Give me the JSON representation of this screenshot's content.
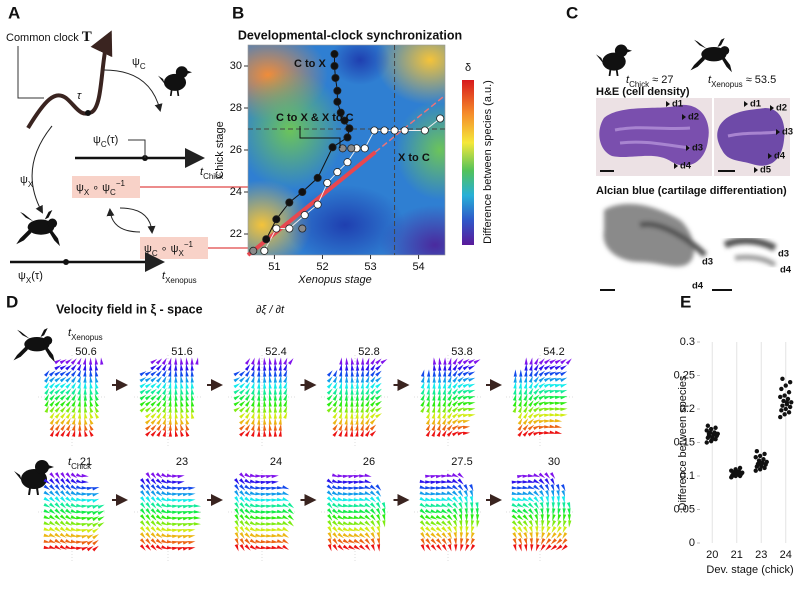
{
  "panels": {
    "A": {
      "label": "A",
      "common_clock": [
        "Common clock ",
        "T"
      ],
      "tau": "τ",
      "psi_c": [
        "ψ",
        "C"
      ],
      "psi_c_tau": [
        "ψ",
        "C",
        "(τ)"
      ],
      "t_chick": [
        "t",
        "Chick"
      ],
      "psi_x": [
        "ψ",
        "X"
      ],
      "psi_x_tau": [
        "ψ",
        "X",
        "(τ)"
      ],
      "t_xenopus": [
        "t",
        "Xenopus"
      ],
      "map_x_c": [
        "ψ",
        "X",
        " ∘ ψ",
        "C",
        "−1"
      ],
      "map_c_x": [
        "ψ",
        "C",
        " ∘ ψ",
        "X",
        "−1"
      ]
    },
    "C": {
      "label": "C",
      "t_chick": [
        "t",
        "Chick",
        " ≈ 27"
      ],
      "t_xenopus": [
        "t",
        "Xenopus",
        " ≈ 53.5"
      ],
      "he_title": "H&E (cell density)",
      "alcian_title": "Alcian blue (cartilage differentiation)",
      "he_chick_digits": [
        "d1",
        "d2",
        "d3",
        "d4"
      ],
      "he_xenopus_digits": [
        "d1",
        "d2",
        "d3",
        "d4",
        "d5"
      ],
      "alcian_chick_digits": [
        "d3",
        "d4"
      ],
      "alcian_xenopus_digits": [
        "d3",
        "d4"
      ]
    },
    "D": {
      "label": "D",
      "title": "Velocity field in ξ - space",
      "formula": "∂ξ / ∂t",
      "t_xenopus": [
        "t",
        "Xenopus"
      ],
      "xenopus_stages": [
        50.6,
        51.6,
        52.4,
        52.8,
        53.8,
        54.2
      ],
      "t_chick": [
        "t",
        "Chick"
      ],
      "chick_stages": [
        21,
        23,
        24,
        26,
        27.5,
        30
      ]
    }
  },
  "chart_data": [
    {
      "type": "scatter",
      "panel_label": "B",
      "title": "Developmental-clock synchronization",
      "xlabel": "Xenopus stage",
      "ylabel": "Chick stage",
      "colorbar_symbol": "δ",
      "colorbar_label": "Difference between species (a.u.)",
      "xlim": [
        50.45,
        54.55
      ],
      "ylim": [
        21,
        31
      ],
      "xticks": [
        51,
        52,
        53,
        54
      ],
      "yticks": [
        22,
        24,
        26,
        28,
        30
      ],
      "series": [
        {
          "name": "C to X",
          "color": "#111111",
          "x": [
            52.25,
            52.25,
            52.27,
            52.31,
            52.31,
            52.38,
            52.46,
            52.56,
            52.52,
            52.21,
            51.9,
            51.58,
            51.31,
            51.04,
            50.83
          ],
          "y": [
            30.57,
            30.0,
            29.43,
            28.82,
            28.3,
            27.78,
            27.4,
            27.03,
            26.6,
            26.13,
            24.67,
            24.0,
            23.5,
            22.7,
            21.75
          ]
        },
        {
          "name": "X to C",
          "color": "#ffffff",
          "x": [
            50.79,
            51.04,
            51.31,
            51.63,
            51.9,
            52.1,
            52.31,
            52.52,
            52.71,
            52.88,
            53.08,
            53.29,
            53.5,
            53.71,
            54.13,
            54.45
          ],
          "y": [
            21.2,
            22.26,
            22.26,
            22.9,
            23.4,
            24.43,
            24.95,
            25.42,
            26.08,
            26.08,
            26.93,
            26.93,
            26.93,
            26.93,
            26.93,
            27.5
          ]
        },
        {
          "name": "C to X & X to C",
          "color": "#8a8a8a",
          "x": [
            50.56,
            51.58,
            52.42,
            52.6
          ],
          "y": [
            21.2,
            22.26,
            26.08,
            26.08
          ]
        }
      ],
      "fit_line": {
        "color": "#e8474f",
        "x": [
          50.45,
          53.1
        ],
        "y": [
          21,
          25.9
        ]
      },
      "fit_extension": {
        "color": "#e8747b",
        "x": [
          53.1,
          54.55
        ],
        "y": [
          25.9,
          28.6
        ]
      },
      "ref_x": 53.5,
      "ref_y": 27
    },
    {
      "type": "strip",
      "panel_label": "E",
      "ylabel": "Difference between species",
      "xlabel": "Dev. stage (chick)",
      "categories": [
        "20",
        "21",
        "23",
        "24"
      ],
      "color": "#111111",
      "values": [
        [
          0.15,
          0.152,
          0.155,
          0.157,
          0.158,
          0.16,
          0.16,
          0.162,
          0.163,
          0.165,
          0.165,
          0.168,
          0.17,
          0.172,
          0.175,
          0.155,
          0.16,
          0.163
        ],
        [
          0.098,
          0.1,
          0.1,
          0.101,
          0.102,
          0.103,
          0.104,
          0.105,
          0.105,
          0.106,
          0.107,
          0.108,
          0.11,
          0.112,
          0.1
        ],
        [
          0.108,
          0.11,
          0.112,
          0.114,
          0.115,
          0.117,
          0.118,
          0.12,
          0.121,
          0.123,
          0.125,
          0.128,
          0.13,
          0.133,
          0.137,
          0.118
        ],
        [
          0.188,
          0.192,
          0.195,
          0.198,
          0.2,
          0.203,
          0.205,
          0.207,
          0.21,
          0.212,
          0.215,
          0.218,
          0.22,
          0.225,
          0.23,
          0.235,
          0.24,
          0.245,
          0.21
        ]
      ],
      "ylim": [
        0,
        0.3
      ],
      "yticks": [
        0,
        0.05,
        0.1,
        0.15,
        0.2,
        0.25,
        0.3
      ]
    }
  ]
}
